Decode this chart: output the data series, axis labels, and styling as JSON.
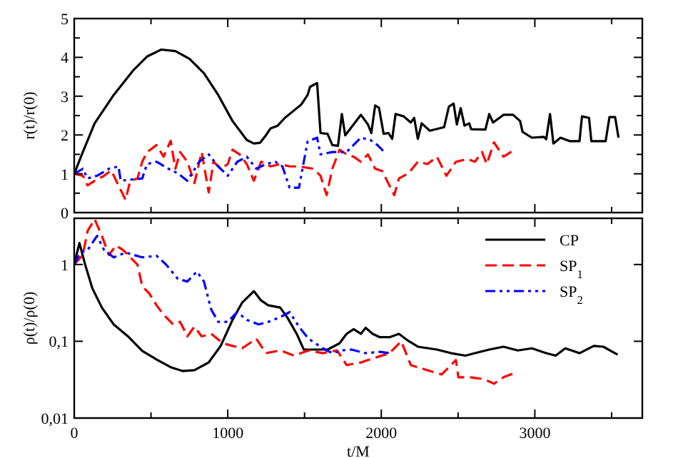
{
  "chart_data": [
    {
      "type": "line",
      "ylabel": "r(t)/r(0)",
      "xlim": [
        0,
        3700
      ],
      "xticks": [
        0,
        {
          "value": 500,
          "label": null
        },
        1000,
        {
          "value": 1500,
          "label": null
        },
        2000,
        {
          "value": 2500,
          "label": null
        },
        3000,
        {
          "value": 3500,
          "label": null
        }
      ],
      "ylim": [
        0,
        5
      ],
      "yticks": [
        0,
        {
          "value": 0.5,
          "label": null
        },
        1,
        {
          "value": 1.5,
          "label": null
        },
        2,
        {
          "value": 2.5,
          "label": null
        },
        3,
        {
          "value": 3.5,
          "label": null
        },
        4,
        {
          "value": 4.5,
          "label": null
        },
        5
      ],
      "tick_labels": "y",
      "legend": false,
      "grid": false,
      "series": [
        {
          "color": "#000000",
          "line_style": "solid",
          "x": [
            0,
            56,
            133,
            257,
            381,
            474,
            567,
            659,
            752,
            845,
            938,
            1031,
            1124,
            1170,
            1211,
            1248,
            1279,
            1325,
            1372,
            1434,
            1480,
            1520,
            1536,
            1582,
            1604,
            1650,
            1681,
            1718,
            1743,
            1765,
            1867,
            1913,
            1935,
            1960,
            1985,
            2015,
            2046,
            2071,
            2093,
            2146,
            2192,
            2214,
            2238,
            2263,
            2316,
            2409,
            2440,
            2471,
            2492,
            2517,
            2542,
            2573,
            2585,
            2678,
            2703,
            2728,
            2796,
            2858,
            2904,
            2920,
            2981,
            3059,
            3074,
            3099,
            3121,
            3167,
            3229,
            3291,
            3307,
            3353,
            3368,
            3461,
            3486,
            3523,
            3545
          ],
          "values": [
            1.0,
            1.56,
            2.3,
            3.03,
            3.65,
            4.02,
            4.2,
            4.16,
            3.96,
            3.59,
            3.03,
            2.36,
            1.87,
            1.78,
            1.8,
            1.99,
            2.17,
            2.24,
            2.44,
            2.64,
            2.79,
            3.03,
            3.24,
            3.34,
            2.05,
            2.03,
            1.74,
            1.72,
            2.54,
            1.99,
            2.52,
            2.27,
            2.05,
            2.76,
            2.7,
            2.03,
            2.05,
            1.9,
            2.54,
            2.48,
            2.32,
            2.44,
            1.9,
            2.3,
            2.11,
            2.2,
            2.73,
            2.81,
            2.27,
            2.69,
            2.24,
            2.3,
            2.15,
            2.14,
            2.54,
            2.32,
            2.52,
            2.52,
            2.36,
            2.08,
            1.93,
            1.95,
            1.89,
            2.54,
            1.78,
            1.93,
            1.84,
            1.84,
            2.48,
            2.44,
            1.84,
            1.84,
            2.46,
            2.46,
            1.93
          ]
        },
        {
          "color": "#ff0000",
          "line_style": "dashed",
          "x": [
            0,
            56,
            87,
            133,
            195,
            241,
            288,
            334,
            365,
            412,
            443,
            474,
            536,
            582,
            628,
            659,
            690,
            737,
            783,
            830,
            876,
            907,
            954,
            1000,
            1031,
            1077,
            1124,
            1170,
            1217,
            1279,
            1341,
            1403,
            1464,
            1557,
            1604,
            1644,
            1681,
            1728,
            1774,
            1820,
            1867,
            1913,
            1960,
            2006,
            2084,
            2115,
            2177,
            2238,
            2300,
            2362,
            2424,
            2486,
            2563,
            2610,
            2656,
            2687,
            2734,
            2796,
            2851
          ],
          "values": [
            1.0,
            0.95,
            0.7,
            0.82,
            0.95,
            1.09,
            0.7,
            0.33,
            0.82,
            0.88,
            1.31,
            1.56,
            1.74,
            1.44,
            1.85,
            1.13,
            1.56,
            1.31,
            0.76,
            1.56,
            0.52,
            1.31,
            1.13,
            1.25,
            1.62,
            1.5,
            1.25,
            0.82,
            1.31,
            1.19,
            1.25,
            1.19,
            1.19,
            1.13,
            0.95,
            0.45,
            1.13,
            1.62,
            1.5,
            1.44,
            1.31,
            1.5,
            1.13,
            1.07,
            0.45,
            0.88,
            1.01,
            1.31,
            1.25,
            1.44,
            0.95,
            1.31,
            1.38,
            1.31,
            1.56,
            1.25,
            1.81,
            1.44,
            1.58
          ]
        },
        {
          "color": "#0000ff",
          "line_style": "dashdot",
          "x": [
            0,
            56,
            87,
            149,
            226,
            288,
            303,
            365,
            443,
            474,
            536,
            613,
            675,
            737,
            814,
            876,
            938,
            1000,
            1062,
            1124,
            1186,
            1248,
            1310,
            1356,
            1403,
            1464,
            1495,
            1520,
            1582,
            1604,
            1681,
            1774,
            1867,
            1929,
            1975,
            2015
          ],
          "values": [
            1.0,
            1.13,
            0.88,
            0.95,
            1.13,
            1.19,
            0.82,
            0.85,
            0.88,
            1.25,
            1.31,
            1.13,
            1.01,
            0.82,
            1.31,
            1.5,
            1.19,
            0.95,
            1.31,
            1.44,
            1.13,
            1.25,
            1.31,
            1.19,
            0.64,
            0.64,
            1.31,
            1.83,
            1.93,
            1.5,
            1.56,
            1.56,
            1.93,
            1.87,
            1.74,
            1.58
          ]
        }
      ]
    },
    {
      "type": "line",
      "xlabel": "t/M",
      "ylabel": "ρ(t)/ρ(0)",
      "log": "y",
      "xlim": [
        0,
        3700
      ],
      "xticks": [
        0,
        {
          "value": 500,
          "label": null
        },
        1000,
        {
          "value": 1500,
          "label": null
        },
        2000,
        {
          "value": 2500,
          "label": null
        },
        3000,
        {
          "value": 3500,
          "label": null
        }
      ],
      "ylim": [
        0.01,
        4
      ],
      "yticks": [
        {
          "value": 0.01,
          "label": "0,01"
        },
        {
          "value": 0.1,
          "label": "0,1"
        },
        1
      ],
      "legend": "top right",
      "grid": false,
      "series": [
        {
          "name": "CP",
          "color": "#000000",
          "line_style": "solid",
          "x": [
            0,
            34,
            71,
            118,
            180,
            257,
            350,
            443,
            536,
            628,
            706,
            783,
            876,
            954,
            1031,
            1093,
            1170,
            1217,
            1263,
            1341,
            1387,
            1449,
            1495,
            1650,
            1728,
            1774,
            1820,
            1867,
            1898,
            1944,
            1991,
            2053,
            2115,
            2177,
            2238,
            2362,
            2455,
            2548,
            2610,
            2703,
            2796,
            2889,
            2981,
            3074,
            3136,
            3198,
            3291,
            3384,
            3446,
            3539
          ],
          "values": [
            1,
            1.91,
            1,
            0.49,
            0.275,
            0.166,
            0.116,
            0.075,
            0.058,
            0.046,
            0.041,
            0.042,
            0.053,
            0.087,
            0.19,
            0.317,
            0.45,
            0.34,
            0.295,
            0.275,
            0.206,
            0.125,
            0.078,
            0.078,
            0.094,
            0.125,
            0.144,
            0.125,
            0.15,
            0.125,
            0.113,
            0.113,
            0.125,
            0.101,
            0.085,
            0.078,
            0.07,
            0.065,
            0.07,
            0.078,
            0.085,
            0.076,
            0.081,
            0.07,
            0.065,
            0.081,
            0.07,
            0.087,
            0.085,
            0.067
          ]
        },
        {
          "name": "SP$_{1}$",
          "color": "#ff0000",
          "line_style": "dashed",
          "x": [
            0,
            56,
            87,
            133,
            180,
            226,
            272,
            319,
            365,
            412,
            443,
            489,
            536,
            582,
            644,
            690,
            737,
            783,
            830,
            892,
            969,
            1031,
            1093,
            1186,
            1248,
            1341,
            1434,
            1526,
            1619,
            1712,
            1774,
            1867,
            1960,
            2053,
            2130,
            2192,
            2300,
            2393,
            2486,
            2502,
            2579,
            2672,
            2734,
            2796,
            2858
          ],
          "values": [
            1,
            1.33,
            2.73,
            3.9,
            2.36,
            1.33,
            1.77,
            1.54,
            1.24,
            1,
            0.52,
            0.42,
            0.295,
            0.222,
            0.166,
            0.179,
            0.116,
            0.155,
            0.116,
            0.125,
            0.094,
            0.087,
            0.081,
            0.108,
            0.07,
            0.076,
            0.065,
            0.076,
            0.07,
            0.076,
            0.049,
            0.053,
            0.061,
            0.07,
            0.1,
            0.049,
            0.042,
            0.037,
            0.057,
            0.034,
            0.034,
            0.032,
            0.028,
            0.034,
            0.038
          ]
        },
        {
          "name": "SP$_{2}$",
          "color": "#0000ff",
          "line_style": "dashdot",
          "x": [
            0,
            40,
            87,
            149,
            195,
            257,
            334,
            443,
            536,
            598,
            675,
            737,
            799,
            845,
            892,
            938,
            1000,
            1062,
            1124,
            1201,
            1263,
            1341,
            1403,
            1464,
            1526,
            1619,
            1681,
            1743,
            1805,
            1898,
            1991,
            2053
          ],
          "values": [
            1,
            1.43,
            1.54,
            2.36,
            1.54,
            1.24,
            1.43,
            1.24,
            1.3,
            1,
            0.65,
            0.6,
            0.81,
            0.6,
            0.26,
            0.179,
            0.179,
            0.24,
            0.19,
            0.166,
            0.179,
            0.206,
            0.24,
            0.155,
            0.108,
            0.081,
            0.07,
            0.076,
            0.078,
            0.07,
            0.073,
            0.07
          ]
        }
      ]
    }
  ]
}
